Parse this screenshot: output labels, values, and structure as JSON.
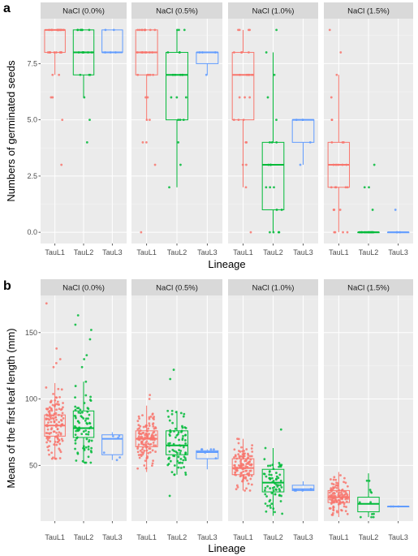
{
  "chart_data": [
    {
      "type": "boxplot",
      "panel_tag": "a",
      "ylabel": "Numbers of germinated seeds",
      "xlabel": "Lineage",
      "ylim": [
        -0.5,
        9.5
      ],
      "yticks": [
        0,
        2.5,
        5,
        7.5
      ],
      "ytick_labels": [
        "0.0",
        "2.5",
        "5.0",
        "7.5"
      ],
      "categories": [
        "TauL1",
        "TauL2",
        "TauL3"
      ],
      "colors": [
        "#F8766D",
        "#00BA38",
        "#619CFF"
      ],
      "grid": true,
      "facets": [
        {
          "label": "NaCl (0.0%)",
          "boxes": [
            {
              "q1": 8,
              "median": 9,
              "q3": 9,
              "whisker_low": 7,
              "whisker_high": 9,
              "points": [
                9,
                9,
                9,
                9,
                9,
                9,
                9,
                9,
                9,
                9,
                9,
                9,
                9,
                8,
                8,
                8,
                8,
                8,
                8,
                8,
                8,
                8,
                7,
                7,
                6,
                6,
                5,
                3
              ]
            },
            {
              "q1": 7,
              "median": 8,
              "q3": 9,
              "whisker_low": 6,
              "whisker_high": 9,
              "points": [
                9,
                9,
                9,
                9,
                9,
                9,
                9,
                8,
                8,
                8,
                8,
                8,
                8,
                7,
                7,
                7,
                6,
                5,
                4
              ]
            },
            {
              "q1": 8,
              "median": 8,
              "q3": 9,
              "whisker_low": 8,
              "whisker_high": 9,
              "points": [
                9,
                9,
                8,
                8,
                8
              ]
            }
          ]
        },
        {
          "label": "NaCl (0.5%)",
          "boxes": [
            {
              "q1": 7,
              "median": 8,
              "q3": 9,
              "whisker_low": 5,
              "whisker_high": 9,
              "points": [
                9,
                9,
                9,
                9,
                9,
                9,
                9,
                9,
                9,
                9,
                8,
                8,
                8,
                8,
                8,
                8,
                8,
                8,
                7,
                7,
                7,
                7,
                7,
                6,
                6,
                5,
                5,
                4,
                4,
                3,
                0
              ]
            },
            {
              "q1": 5,
              "median": 7,
              "q3": 8,
              "whisker_low": 2,
              "whisker_high": 9,
              "points": [
                9,
                9,
                9,
                8,
                8,
                8,
                7,
                7,
                7,
                7,
                7,
                6,
                6,
                6,
                5,
                5,
                5,
                4,
                3,
                2
              ]
            },
            {
              "q1": 7.5,
              "median": 8,
              "q3": 8,
              "whisker_low": 7,
              "whisker_high": 8,
              "points": [
                8,
                8,
                8,
                7
              ]
            }
          ]
        },
        {
          "label": "NaCl (1.0%)",
          "boxes": [
            {
              "q1": 5,
              "median": 7,
              "q3": 8,
              "whisker_low": 2,
              "whisker_high": 9,
              "points": [
                9,
                9,
                9,
                9,
                8,
                8,
                8,
                8,
                7,
                7,
                7,
                7,
                7,
                6,
                6,
                6,
                5,
                5,
                5,
                4,
                4,
                3,
                3,
                2,
                0
              ]
            },
            {
              "q1": 1,
              "median": 3,
              "q3": 4,
              "whisker_low": 0,
              "whisker_high": 8,
              "points": [
                9,
                8,
                7,
                6,
                5,
                4,
                4,
                4,
                3,
                3,
                3,
                2,
                2,
                2,
                1,
                1,
                0,
                0,
                0,
                0
              ]
            },
            {
              "q1": 4,
              "median": 5,
              "q3": 5,
              "whisker_low": 3,
              "whisker_high": 5,
              "points": [
                5,
                5,
                5,
                4,
                3
              ]
            }
          ]
        },
        {
          "label": "NaCl (1.5%)",
          "boxes": [
            {
              "q1": 2,
              "median": 3,
              "q3": 4,
              "whisker_low": 0,
              "whisker_high": 7,
              "points": [
                9,
                8,
                7,
                6,
                5,
                5,
                4,
                4,
                4,
                3,
                3,
                3,
                3,
                3,
                2,
                2,
                2,
                2,
                2,
                1,
                1,
                1,
                0,
                0,
                0,
                0
              ]
            },
            {
              "q1": 0,
              "median": 0,
              "q3": 0,
              "whisker_low": 0,
              "whisker_high": 0,
              "points": [
                3,
                2,
                2,
                1,
                0,
                0,
                0,
                0,
                0,
                0,
                0,
                0,
                0,
                0,
                0,
                0,
                0,
                0
              ]
            },
            {
              "q1": 0,
              "median": 0,
              "q3": 0,
              "whisker_low": 0,
              "whisker_high": 0,
              "points": [
                1,
                0,
                0,
                0
              ]
            }
          ]
        }
      ]
    },
    {
      "type": "boxplot",
      "panel_tag": "b",
      "ylabel": "Means of the first leaf length (mm)",
      "xlabel": "Lineage",
      "ylim": [
        8,
        178
      ],
      "yticks": [
        50,
        100,
        150
      ],
      "ytick_labels": [
        "50",
        "100",
        "150"
      ],
      "categories": [
        "TauL1",
        "TauL2",
        "TauL3"
      ],
      "colors": [
        "#F8766D",
        "#00BA38",
        "#619CFF"
      ],
      "grid": true,
      "facets": [
        {
          "label": "NaCl (0.0%)",
          "boxes": [
            {
              "q1": 72,
              "median": 80,
              "q3": 88,
              "whisker_low": 55,
              "whisker_high": 112,
              "n": 130,
              "outliers": [
                172,
                138,
                130,
                127,
                124
              ]
            },
            {
              "q1": 71,
              "median": 78,
              "q3": 91,
              "whisker_low": 52,
              "whisker_high": 113,
              "n": 80,
              "outliers": [
                163,
                156,
                152,
                145,
                133,
                130,
                124
              ]
            },
            {
              "q1": 58,
              "median": 70,
              "q3": 73,
              "whisker_low": 54,
              "whisker_high": 75,
              "n": 6,
              "outliers": []
            }
          ]
        },
        {
          "label": "NaCl (0.5%)",
          "boxes": [
            {
              "q1": 64,
              "median": 70,
              "q3": 76,
              "whisker_low": 45,
              "whisker_high": 95,
              "n": 130,
              "outliers": [
                103,
                100
              ]
            },
            {
              "q1": 58,
              "median": 65,
              "q3": 76,
              "whisker_low": 43,
              "whisker_high": 91,
              "n": 80,
              "outliers": [
                122,
                115,
                27
              ]
            },
            {
              "q1": 55,
              "median": 60,
              "q3": 61,
              "whisker_low": 47,
              "whisker_high": 62,
              "n": 6,
              "outliers": []
            }
          ]
        },
        {
          "label": "NaCl (1.0%)",
          "boxes": [
            {
              "q1": 43,
              "median": 48,
              "q3": 55,
              "whisker_low": 31,
              "whisker_high": 70,
              "n": 120,
              "outliers": []
            },
            {
              "q1": 30,
              "median": 37,
              "q3": 47,
              "whisker_low": 12,
              "whisker_high": 63,
              "n": 70,
              "outliers": [
                77
              ]
            },
            {
              "q1": 31,
              "median": 32,
              "q3": 35,
              "whisker_low": 31,
              "whisker_high": 38,
              "n": 5,
              "outliers": []
            }
          ]
        },
        {
          "label": "NaCl (1.5%)",
          "boxes": [
            {
              "q1": 22,
              "median": 26,
              "q3": 31,
              "whisker_low": 11,
              "whisker_high": 45,
              "n": 110,
              "outliers": []
            },
            {
              "q1": 15,
              "median": 21,
              "q3": 26,
              "whisker_low": 11,
              "whisker_high": 44,
              "n": 12,
              "outliers": []
            },
            {
              "q1": 19,
              "median": 19,
              "q3": 19,
              "whisker_low": 19,
              "whisker_high": 19,
              "n": 3,
              "outliers": []
            }
          ]
        }
      ]
    }
  ]
}
